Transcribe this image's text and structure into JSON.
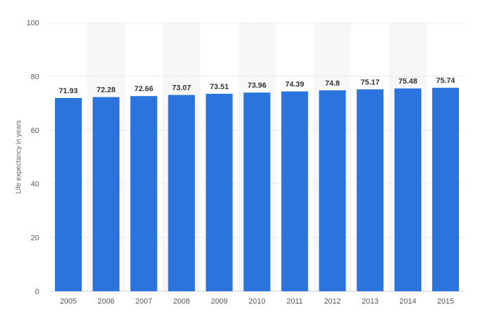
{
  "chart_data": {
    "type": "bar",
    "categories": [
      "2005",
      "2006",
      "2007",
      "2008",
      "2009",
      "2010",
      "2011",
      "2012",
      "2013",
      "2014",
      "2015"
    ],
    "values": [
      71.93,
      72.28,
      72.66,
      73.07,
      73.51,
      73.96,
      74.39,
      74.8,
      75.17,
      75.48,
      75.74
    ],
    "value_labels": [
      "71.93",
      "72.28",
      "72.66",
      "73.07",
      "73.51",
      "73.96",
      "74.39",
      "74.8",
      "75.17",
      "75.48",
      "75.74"
    ],
    "y_ticks": [
      "0",
      "20",
      "40",
      "60",
      "80",
      "100"
    ],
    "title": "",
    "xlabel": "",
    "ylabel": "Life expectancy in years",
    "ylim": [
      0,
      100
    ],
    "grid": true,
    "legend": "none",
    "bar_color": "#2b74dd",
    "band_color": "#f7f7f7",
    "grid_color": "#cccccc"
  }
}
